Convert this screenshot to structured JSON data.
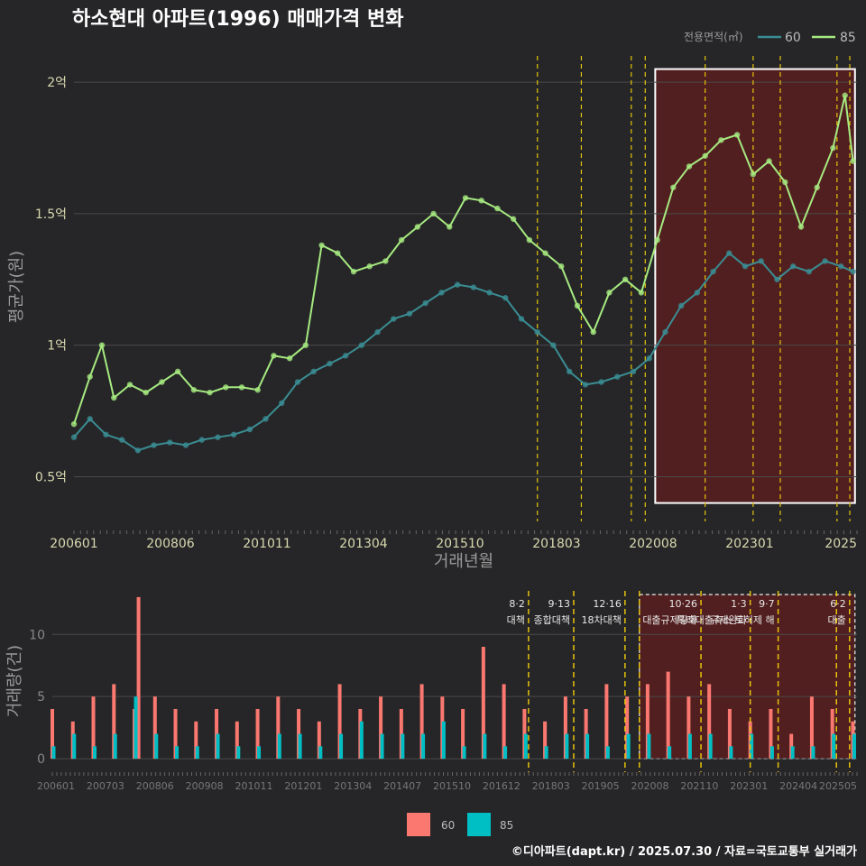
{
  "colors": {
    "background": "#262628",
    "grid": "#4a4a4a",
    "line_60": "#3a8d93",
    "line_85": "#a6ea80",
    "bar_60": "#fa7870",
    "bar_85": "#00bfc4",
    "event_line": "#e6c20c",
    "highlight_fill": "#5a1f1f",
    "highlight_stroke": "#ffffff"
  },
  "chart_data": [
    {
      "type": "line",
      "title": "하소현대 아파트(1996) 매매가격 변화",
      "xlabel": "거래년월",
      "ylabel": "평균가(원)",
      "x_tick_labels": [
        "200601",
        "200806",
        "201011",
        "201304",
        "201510",
        "201803",
        "202008",
        "202301",
        "2025"
      ],
      "y_ticks": [
        {
          "value": 0.5,
          "label": "0.5억"
        },
        {
          "value": 1.0,
          "label": "1억"
        },
        {
          "value": 1.5,
          "label": "1.5억"
        },
        {
          "value": 2.0,
          "label": "2억"
        }
      ],
      "ylim": [
        0.33,
        2.1
      ],
      "xlim": [
        2006.0,
        2025.6
      ],
      "legend": {
        "title": "전용면적(㎡)",
        "position": "top-right",
        "entries": [
          "60",
          "85"
        ]
      },
      "event_lines_x": [
        2017.6,
        2018.7,
        2019.95,
        2020.3,
        2021.8,
        2023.0,
        2023.68,
        2025.1,
        2025.42
      ],
      "highlight_range": {
        "x": [
          2020.55,
          2025.55
        ],
        "y": [
          0.4,
          2.05
        ]
      },
      "series": [
        {
          "name": "60",
          "x": [
            2006.0,
            2006.4,
            2006.8,
            2007.2,
            2007.6,
            2008.0,
            2008.4,
            2008.8,
            2009.2,
            2009.6,
            2010.0,
            2010.4,
            2010.8,
            2011.2,
            2011.6,
            2012.0,
            2012.4,
            2012.8,
            2013.2,
            2013.6,
            2014.0,
            2014.4,
            2014.8,
            2015.2,
            2015.6,
            2016.0,
            2016.4,
            2016.8,
            2017.2,
            2017.6,
            2018.0,
            2018.4,
            2018.8,
            2019.2,
            2019.6,
            2020.0,
            2020.4,
            2020.8,
            2021.2,
            2021.6,
            2022.0,
            2022.4,
            2022.8,
            2023.2,
            2023.6,
            2024.0,
            2024.4,
            2024.8,
            2025.2,
            2025.5
          ],
          "values": [
            0.65,
            0.72,
            0.66,
            0.64,
            0.6,
            0.62,
            0.63,
            0.62,
            0.64,
            0.65,
            0.66,
            0.68,
            0.72,
            0.78,
            0.86,
            0.9,
            0.93,
            0.96,
            1.0,
            1.05,
            1.1,
            1.12,
            1.16,
            1.2,
            1.23,
            1.22,
            1.2,
            1.18,
            1.1,
            1.05,
            1.0,
            0.9,
            0.85,
            0.86,
            0.88,
            0.9,
            0.95,
            1.05,
            1.15,
            1.2,
            1.28,
            1.35,
            1.3,
            1.32,
            1.25,
            1.3,
            1.28,
            1.32,
            1.3,
            1.28
          ]
        },
        {
          "name": "85",
          "x": [
            2006.0,
            2006.4,
            2006.7,
            2007.0,
            2007.4,
            2007.8,
            2008.2,
            2008.6,
            2009.0,
            2009.4,
            2009.8,
            2010.2,
            2010.6,
            2011.0,
            2011.4,
            2011.8,
            2012.2,
            2012.6,
            2013.0,
            2013.4,
            2013.8,
            2014.2,
            2014.6,
            2015.0,
            2015.4,
            2015.8,
            2016.2,
            2016.6,
            2017.0,
            2017.4,
            2017.8,
            2018.2,
            2018.6,
            2019.0,
            2019.4,
            2019.8,
            2020.2,
            2020.6,
            2021.0,
            2021.4,
            2021.8,
            2022.2,
            2022.6,
            2023.0,
            2023.4,
            2023.8,
            2024.2,
            2024.6,
            2025.0,
            2025.3,
            2025.5
          ],
          "values": [
            0.7,
            0.88,
            1.0,
            0.8,
            0.85,
            0.82,
            0.86,
            0.9,
            0.83,
            0.82,
            0.84,
            0.84,
            0.83,
            0.96,
            0.95,
            1.0,
            1.38,
            1.35,
            1.28,
            1.3,
            1.32,
            1.4,
            1.45,
            1.5,
            1.45,
            1.56,
            1.55,
            1.52,
            1.48,
            1.4,
            1.35,
            1.3,
            1.15,
            1.05,
            1.2,
            1.25,
            1.2,
            1.4,
            1.6,
            1.68,
            1.72,
            1.78,
            1.8,
            1.65,
            1.7,
            1.62,
            1.45,
            1.6,
            1.75,
            1.95,
            1.7
          ]
        }
      ]
    },
    {
      "type": "bar",
      "ylabel": "거래량(건)",
      "x_tick_labels": [
        "200601",
        "200703",
        "200806",
        "200908",
        "201011",
        "201201",
        "201304",
        "201407",
        "201510",
        "201612",
        "201803",
        "201905",
        "202008",
        "202110",
        "202301",
        "202404",
        "202505"
      ],
      "y_ticks": [
        0,
        5,
        10
      ],
      "ylim": [
        -0.5,
        13.5
      ],
      "xlim": [
        2006.0,
        2025.6
      ],
      "legend": {
        "position": "bottom",
        "entries": [
          "60",
          "85"
        ]
      },
      "event_lines_x": [
        2017.6,
        2018.7,
        2019.95,
        2020.3,
        2021.8,
        2023.0,
        2023.68,
        2025.1,
        2025.42
      ],
      "highlight_range": {
        "x": [
          2020.3,
          2025.55
        ],
        "y": [
          0,
          13.2
        ]
      },
      "annotations": [
        {
          "x": 2017.6,
          "date": "8·2",
          "label": "대책"
        },
        {
          "x": 2018.7,
          "date": "9·13",
          "label": "종합대책"
        },
        {
          "x": 2019.95,
          "date": "12·16",
          "label": "18차대책"
        },
        {
          "x": 2021.8,
          "date": "10·26",
          "label": "대출규제강화"
        },
        {
          "x": 2023.0,
          "date": "1·3",
          "label": "규제완화"
        },
        {
          "x": 2023.68,
          "date": "9·7",
          "label": "특례대출축소 토허제 해"
        },
        {
          "x": 2025.42,
          "date": "6·2",
          "label": "대출"
        }
      ],
      "series": [
        {
          "name": "60",
          "x": [
            2006.0,
            2006.5,
            2007.0,
            2007.5,
            2008.0,
            2008.1,
            2008.5,
            2009.0,
            2009.5,
            2010.0,
            2010.5,
            2011.0,
            2011.5,
            2012.0,
            2012.5,
            2013.0,
            2013.5,
            2014.0,
            2014.5,
            2015.0,
            2015.5,
            2016.0,
            2016.5,
            2017.0,
            2017.5,
            2018.0,
            2018.5,
            2019.0,
            2019.5,
            2020.0,
            2020.5,
            2021.0,
            2021.5,
            2022.0,
            2022.5,
            2023.0,
            2023.5,
            2024.0,
            2024.5,
            2025.0,
            2025.5
          ],
          "values": [
            4,
            3,
            5,
            6,
            4,
            13,
            5,
            4,
            3,
            4,
            3,
            4,
            5,
            4,
            3,
            6,
            4,
            5,
            4,
            6,
            5,
            4,
            9,
            6,
            4,
            3,
            5,
            4,
            6,
            5,
            6,
            7,
            5,
            6,
            4,
            3,
            4,
            2,
            5,
            4,
            3
          ]
        },
        {
          "name": "85",
          "x": [
            2006.0,
            2006.5,
            2007.0,
            2007.5,
            2008.0,
            2008.5,
            2009.0,
            2009.5,
            2010.0,
            2010.5,
            2011.0,
            2011.5,
            2012.0,
            2012.5,
            2013.0,
            2013.5,
            2014.0,
            2014.5,
            2015.0,
            2015.5,
            2016.0,
            2016.5,
            2017.0,
            2017.5,
            2018.0,
            2018.5,
            2019.0,
            2019.5,
            2020.0,
            2020.5,
            2021.0,
            2021.5,
            2022.0,
            2022.5,
            2023.0,
            2023.5,
            2024.0,
            2024.5,
            2025.0,
            2025.5
          ],
          "values": [
            1,
            2,
            1,
            2,
            5,
            2,
            1,
            1,
            2,
            1,
            1,
            2,
            2,
            1,
            2,
            3,
            2,
            2,
            2,
            3,
            1,
            2,
            1,
            2,
            1,
            2,
            2,
            1,
            2,
            2,
            1,
            2,
            2,
            1,
            2,
            1,
            1,
            1,
            2,
            2
          ]
        }
      ]
    }
  ],
  "footer": "©디아파트(dapt.kr) / 2025.07.30 / 자료=국토교통부 실거래가"
}
